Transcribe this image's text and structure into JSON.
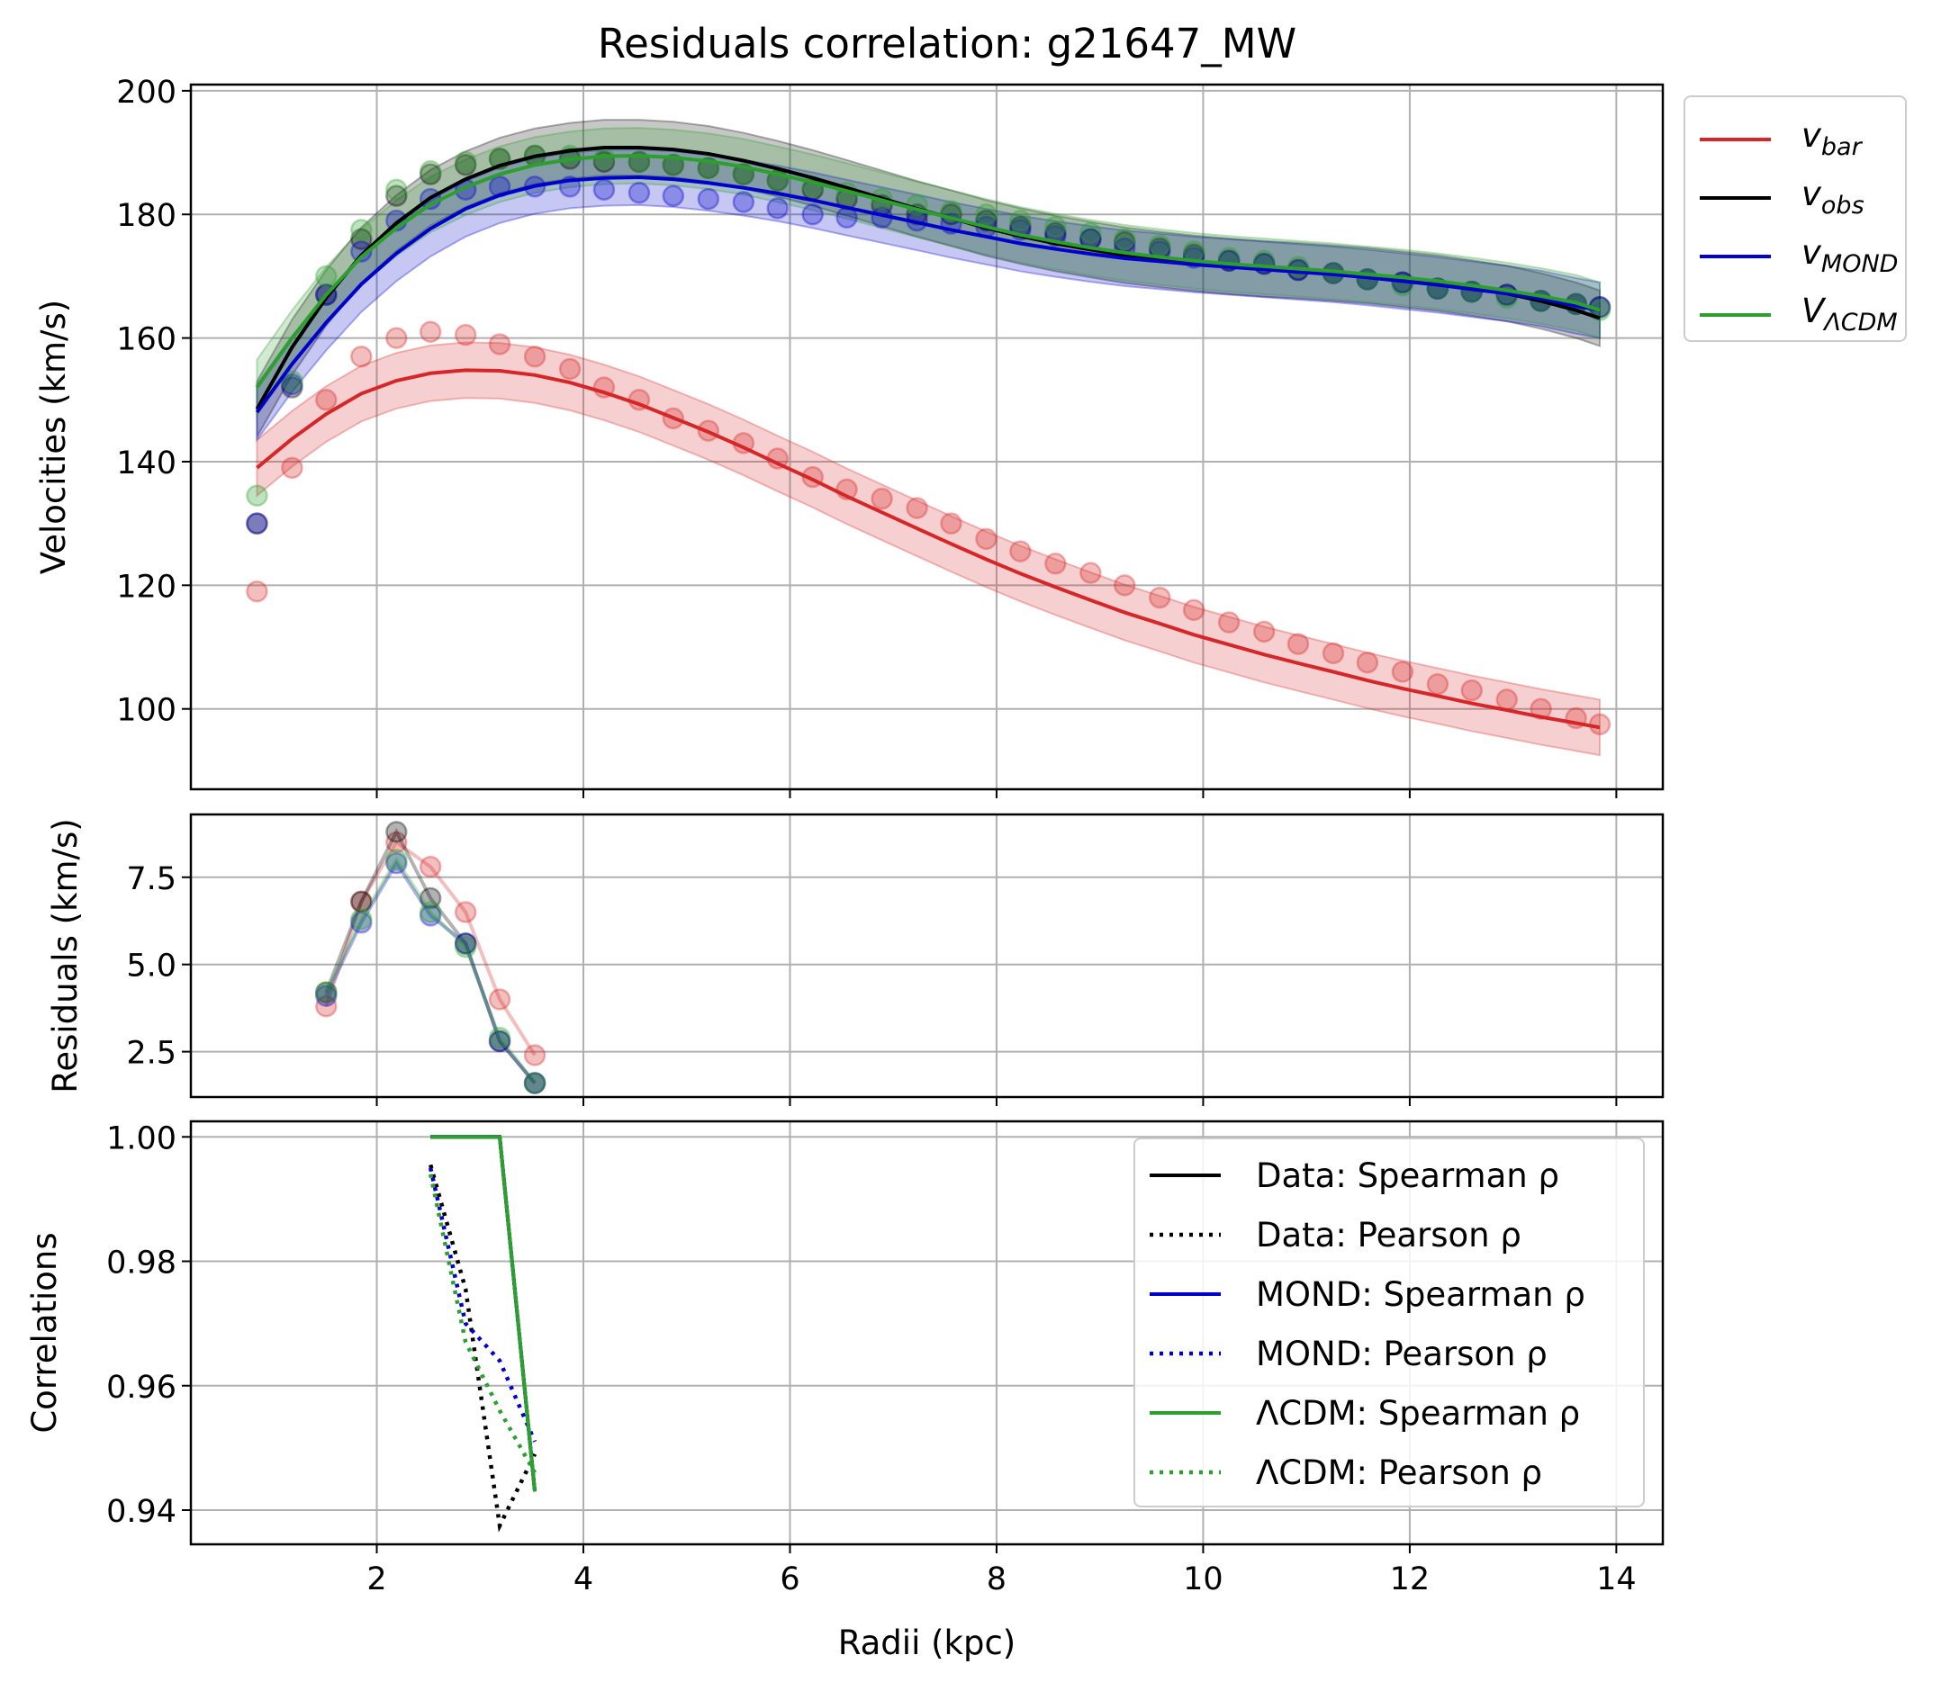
{
  "title": "Residuals correlation: g21647_MW",
  "colors": {
    "bar": "#d62728",
    "obs": "#000000",
    "mond": "#0000cc",
    "lcdm": "#2ca02c",
    "grid": "#b0b0b0"
  },
  "chart_data": [
    {
      "type": "line",
      "panel": "velocities",
      "ylabel": "Velocities (km/s)",
      "xlim": [
        0.2,
        14.45
      ],
      "ylim": [
        87,
        201
      ],
      "xticks": [
        2,
        4,
        6,
        8,
        10,
        12,
        14
      ],
      "yticks": [
        100,
        120,
        140,
        160,
        180,
        200
      ],
      "ytick_labels": [
        "100",
        "120",
        "140",
        "160",
        "180",
        "200"
      ],
      "grid": true,
      "legend_position": "outside right, top",
      "legend": [
        {
          "series": "bar",
          "label": "v",
          "sub": "bar"
        },
        {
          "series": "obs",
          "label": "v",
          "sub": "obs"
        },
        {
          "series": "mond",
          "label": "v",
          "sub": "MOND"
        },
        {
          "series": "lcdm",
          "label": "V",
          "sub": "ΛCDM"
        }
      ],
      "x": [
        0.84,
        1.18,
        1.51,
        1.85,
        2.19,
        2.52,
        2.86,
        3.19,
        3.53,
        3.87,
        4.2,
        4.54,
        4.87,
        5.21,
        5.55,
        5.88,
        6.22,
        6.55,
        6.89,
        7.23,
        7.56,
        7.9,
        8.23,
        8.57,
        8.91,
        9.24,
        9.58,
        9.91,
        10.25,
        10.59,
        10.92,
        11.26,
        11.59,
        11.93,
        12.27,
        12.6,
        12.94,
        13.27,
        13.61,
        13.84
      ],
      "series": [
        {
          "key": "bar",
          "points": [
            119,
            139,
            150,
            157,
            160,
            161,
            160.5,
            159,
            157,
            155,
            152,
            150,
            147,
            145,
            143,
            140.5,
            137.5,
            135.5,
            134,
            132.5,
            130,
            127.5,
            125.5,
            123.5,
            122,
            120,
            118,
            116,
            114,
            112.5,
            110.5,
            109,
            107.5,
            106,
            104,
            103,
            101.5,
            100,
            98.5,
            97.5
          ],
          "fit": [
            139,
            143.7,
            147.7,
            151,
            153.1,
            154.3,
            154.8,
            154.7,
            154,
            152.8,
            151.2,
            149.3,
            147.1,
            144.8,
            142.3,
            139.7,
            137.1,
            134.4,
            131.8,
            129.2,
            126.7,
            124.2,
            121.9,
            119.7,
            117.6,
            115.6,
            113.8,
            112,
            110.4,
            108.8,
            107.4,
            106,
            104.6,
            103.3,
            102.1,
            100.9,
            99.8,
            98.7,
            97.7,
            97
          ],
          "band": 4.5
        },
        {
          "key": "obs",
          "points": [
            130,
            152,
            167,
            176,
            183,
            186.5,
            188,
            189,
            189.5,
            189,
            188.5,
            188.5,
            188,
            187.5,
            186.5,
            185.5,
            184,
            182.5,
            181.5,
            180,
            180,
            179,
            178,
            177,
            176,
            175.5,
            174.5,
            173.5,
            172.5,
            172,
            171,
            170.5,
            169.5,
            169,
            168,
            167.5,
            167,
            166,
            165.5,
            165
          ],
          "fit": [
            148.5,
            158.5,
            166.5,
            173.4,
            178.6,
            182.7,
            185.7,
            187.9,
            189.4,
            190.3,
            190.8,
            190.8,
            190.5,
            189.8,
            188.7,
            187.4,
            185.9,
            184.3,
            182.6,
            180.9,
            179.4,
            177.8,
            176.5,
            175.3,
            174.3,
            173.4,
            172.7,
            172.1,
            171.6,
            171.2,
            170.9,
            170.5,
            170.1,
            169.5,
            168.9,
            168.1,
            167.2,
            166,
            164.5,
            163.2
          ],
          "band": 4.5
        },
        {
          "key": "mond",
          "points": [
            130,
            152.5,
            167,
            174,
            179,
            182.5,
            184,
            184.5,
            184.5,
            184.5,
            184,
            183.5,
            183,
            182.5,
            182,
            181,
            180,
            179.5,
            179.5,
            179,
            178.5,
            178,
            177.5,
            176.5,
            176,
            174.5,
            174,
            173,
            172.5,
            172,
            171,
            170.5,
            169.5,
            169,
            168,
            167.5,
            167,
            166,
            165.5,
            165
          ],
          "fit": [
            148,
            155.8,
            162.5,
            168.7,
            173.7,
            177.7,
            180.9,
            183.1,
            184.6,
            185.5,
            185.9,
            186,
            185.7,
            185.1,
            184.3,
            183.4,
            182.3,
            181.1,
            179.9,
            178.7,
            177.5,
            176.4,
            175.3,
            174.4,
            173.6,
            172.9,
            172.4,
            171.9,
            171.5,
            171.1,
            170.7,
            170.3,
            169.8,
            169.2,
            168.6,
            167.9,
            167.2,
            166.4,
            165.2,
            164.5
          ],
          "band": 4.5
        },
        {
          "key": "lcdm",
          "points": [
            134.5,
            153,
            170,
            177.5,
            184,
            187,
            188.5,
            189,
            189.5,
            189.5,
            189,
            188.5,
            188,
            187.5,
            186.5,
            185.5,
            184.5,
            183.5,
            182.5,
            181.5,
            180.5,
            180,
            179,
            178,
            177,
            176,
            175,
            174,
            173,
            172.5,
            171.5,
            170.5,
            169.5,
            168.5,
            168,
            167.5,
            166.5,
            166,
            165.5,
            164.5
          ],
          "fit": [
            152,
            160,
            167,
            173.1,
            177.8,
            181.6,
            184.4,
            186.5,
            188,
            188.9,
            189.4,
            189.5,
            189.2,
            188.6,
            187.7,
            186.5,
            185.2,
            183.8,
            182.3,
            180.8,
            179.4,
            178,
            176.7,
            175.6,
            174.6,
            173.8,
            173.1,
            172.5,
            172,
            171.6,
            171.2,
            170.8,
            170.3,
            169.8,
            169.2,
            168.5,
            167.7,
            166.8,
            165.7,
            164.5
          ],
          "band": 4.5
        }
      ]
    },
    {
      "type": "line",
      "panel": "residuals",
      "ylabel": "Residuals (km/s)",
      "xlim": [
        0.2,
        14.45
      ],
      "ylim": [
        1.2,
        9.3
      ],
      "yticks": [
        2.5,
        5.0,
        7.5
      ],
      "ytick_labels": [
        "2.5",
        "5.0",
        "7.5"
      ],
      "grid": true,
      "x": [
        1.51,
        1.85,
        2.19,
        2.52,
        2.86,
        3.19,
        3.53
      ],
      "series": [
        {
          "key": "bar",
          "values": [
            3.8,
            6.8,
            8.5,
            7.8,
            6.5,
            4.0,
            2.4
          ]
        },
        {
          "key": "obs",
          "values": [
            4.2,
            6.8,
            8.8,
            6.9,
            5.6,
            2.8,
            1.6
          ]
        },
        {
          "key": "mond",
          "values": [
            4.1,
            6.2,
            7.9,
            6.4,
            5.6,
            2.8,
            1.6
          ]
        },
        {
          "key": "lcdm",
          "values": [
            4.2,
            6.3,
            8.0,
            6.5,
            5.5,
            2.9,
            1.6
          ]
        }
      ]
    },
    {
      "type": "line",
      "panel": "correlations",
      "ylabel": "Correlations",
      "xlabel": "Radii (kpc)",
      "xlim": [
        0.2,
        14.45
      ],
      "ylim": [
        0.9345,
        1.0025
      ],
      "xticks": [
        2,
        4,
        6,
        8,
        10,
        12,
        14
      ],
      "xtick_labels": [
        "2",
        "4",
        "6",
        "8",
        "10",
        "12",
        "14"
      ],
      "yticks": [
        0.94,
        0.96,
        0.98,
        1.0
      ],
      "ytick_labels": [
        "0.94",
        "0.96",
        "0.98",
        "1.00"
      ],
      "grid": true,
      "legend_position": "upper right",
      "series": [
        {
          "key": "obs",
          "style": "solid",
          "label": "Data: Spearman ρ",
          "x": [
            2.52,
            2.86,
            3.19,
            3.53
          ],
          "values": [
            1.0,
            1.0,
            1.0,
            0.943
          ]
        },
        {
          "key": "obs",
          "style": "dotted",
          "label": "Data: Pearson ρ",
          "x": [
            2.52,
            2.86,
            3.19,
            3.53
          ],
          "values": [
            0.9955,
            0.9755,
            0.9375,
            0.949
          ]
        },
        {
          "key": "mond",
          "style": "solid",
          "label": "MOND: Spearman ρ",
          "x": [
            2.52,
            2.86,
            3.19,
            3.53
          ],
          "values": [
            1.0,
            1.0,
            1.0,
            0.943
          ]
        },
        {
          "key": "mond",
          "style": "dotted",
          "label": "MOND: Pearson ρ",
          "x": [
            2.52,
            2.86,
            3.19,
            3.53
          ],
          "values": [
            0.995,
            0.97,
            0.964,
            0.951
          ]
        },
        {
          "key": "lcdm",
          "style": "solid",
          "label": "ΛCDM: Spearman ρ",
          "x": [
            2.52,
            2.86,
            3.19,
            3.53
          ],
          "values": [
            1.0,
            1.0,
            1.0,
            0.943
          ]
        },
        {
          "key": "lcdm",
          "style": "dotted",
          "label": "ΛCDM: Pearson ρ",
          "x": [
            2.52,
            2.86,
            3.19,
            3.53
          ],
          "values": [
            0.994,
            0.967,
            0.956,
            0.946
          ]
        }
      ]
    }
  ]
}
